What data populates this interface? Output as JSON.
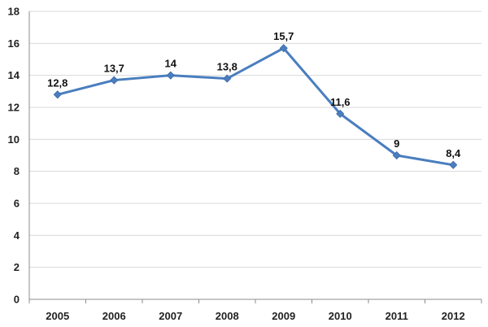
{
  "chart_data": {
    "type": "line",
    "categories": [
      "2005",
      "2006",
      "2007",
      "2008",
      "2009",
      "2010",
      "2011",
      "2012"
    ],
    "series": [
      {
        "values": [
          12.8,
          13.7,
          14,
          13.8,
          15.7,
          11.6,
          9,
          8.4
        ],
        "color": "#4a7ebf"
      }
    ],
    "data_labels": [
      "12,8",
      "13,7",
      "14",
      "13,8",
      "15,7",
      "11,6",
      "9",
      "8,4"
    ],
    "y_ticks": [
      "0",
      "2",
      "4",
      "6",
      "8",
      "10",
      "12",
      "14",
      "16",
      "18"
    ],
    "ylim": [
      0,
      18
    ],
    "grid": true,
    "legend": "none",
    "marker": "diamond",
    "title": "",
    "xlabel": "",
    "ylabel": ""
  }
}
